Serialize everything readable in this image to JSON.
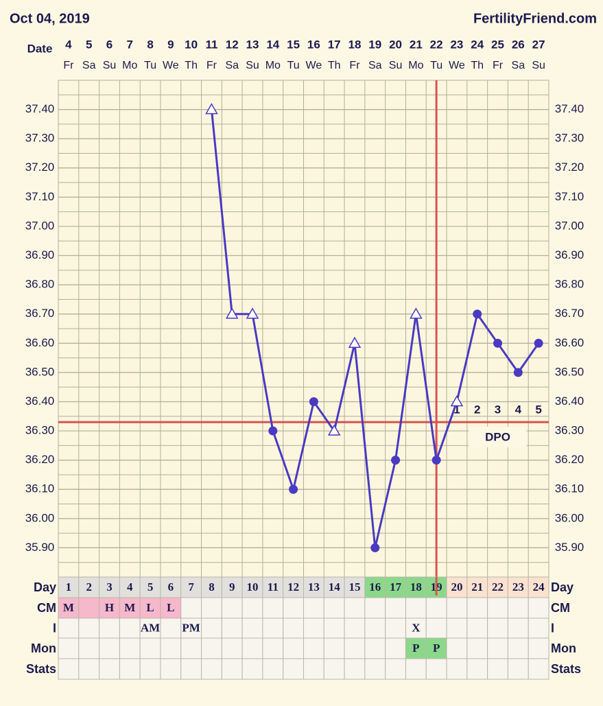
{
  "chart_data": {
    "type": "line",
    "title": "Oct 04, 2019",
    "source": "FertilityFriend.com",
    "x_label": "Date",
    "categories": [
      "4",
      "5",
      "6",
      "7",
      "8",
      "9",
      "10",
      "11",
      "12",
      "13",
      "14",
      "15",
      "16",
      "17",
      "18",
      "19",
      "20",
      "21",
      "22",
      "23",
      "24",
      "25",
      "26",
      "27"
    ],
    "weekdays": [
      "Fr",
      "Sa",
      "Su",
      "Mo",
      "Tu",
      "We",
      "Th",
      "Fr",
      "Sa",
      "Su",
      "Mo",
      "Tu",
      "We",
      "Th",
      "Fr",
      "Sa",
      "Su",
      "Mo",
      "Tu",
      "We",
      "Th",
      "Fr",
      "Sa",
      "Su"
    ],
    "series": [
      {
        "color": "#4a3ac2",
        "values": [
          null,
          null,
          null,
          null,
          null,
          null,
          null,
          37.4,
          36.7,
          36.7,
          36.3,
          36.1,
          36.4,
          36.3,
          36.6,
          35.9,
          36.2,
          36.7,
          36.2,
          36.4,
          36.7,
          36.6,
          36.5,
          36.6
        ],
        "markers": [
          null,
          null,
          null,
          null,
          null,
          null,
          null,
          "triangle",
          "triangle",
          "triangle",
          "circle",
          "circle",
          "circle",
          "triangle",
          "triangle",
          "circle",
          "circle",
          "triangle",
          "circle",
          "triangle",
          "circle",
          "circle",
          "circle",
          "circle"
        ]
      }
    ],
    "ylim": [
      35.8,
      37.5
    ],
    "yticks": [
      {
        "value": 35.9,
        "label": "35.90"
      },
      {
        "value": 36.0,
        "label": "36.00"
      },
      {
        "value": 36.1,
        "label": "36.10"
      },
      {
        "value": 36.2,
        "label": "36.20"
      },
      {
        "value": 36.3,
        "label": "36.30"
      },
      {
        "value": 36.4,
        "label": "36.40"
      },
      {
        "value": 36.5,
        "label": "36.50"
      },
      {
        "value": 36.6,
        "label": "36.60"
      },
      {
        "value": 36.7,
        "label": "36.70"
      },
      {
        "value": 36.8,
        "label": "36.80"
      },
      {
        "value": 36.9,
        "label": "36.90"
      },
      {
        "value": 37.0,
        "label": "37.00"
      },
      {
        "value": 37.1,
        "label": "37.10"
      },
      {
        "value": 37.2,
        "label": "37.20"
      },
      {
        "value": 37.3,
        "label": "37.30"
      },
      {
        "value": 37.4,
        "label": "37.40"
      }
    ],
    "grid": true,
    "coverline": {
      "value": 36.33,
      "color": "#d9534f"
    },
    "ovulation_line": {
      "x": "22",
      "color": "#d9534f"
    },
    "dpo": {
      "label": "DPO",
      "days": [
        "1",
        "2",
        "3",
        "4",
        "5"
      ]
    },
    "table": {
      "rows": [
        {
          "label": "Day",
          "cells": [
            "1",
            "2",
            "3",
            "4",
            "5",
            "6",
            "7",
            "8",
            "9",
            "10",
            "11",
            "12",
            "13",
            "14",
            "15",
            "16",
            "17",
            "18",
            "19",
            "20",
            "21",
            "22",
            "23",
            "24"
          ],
          "colors": [
            "#e2e0dc",
            "#e2e0dc",
            "#e2e0dc",
            "#e2e0dc",
            "#e2e0dc",
            "#e2e0dc",
            "#e2e0dc",
            "#e2e0dc",
            "#e2e0dc",
            "#e2e0dc",
            "#e2e0dc",
            "#e2e0dc",
            "#e2e0dc",
            "#e2e0dc",
            "#e2e0dc",
            "#8cd88a",
            "#8cd88a",
            "#8cd88a",
            "#8cd88a",
            "#fbe2cf",
            "#fbe2cf",
            "#fbe2cf",
            "#fbe2cf",
            "#fbe2cf"
          ]
        },
        {
          "label": "CM",
          "cells": [
            "M",
            null,
            "H",
            "M",
            "L",
            "L",
            null,
            null,
            null,
            null,
            null,
            null,
            null,
            null,
            null,
            null,
            null,
            null,
            null,
            null,
            null,
            null,
            null,
            null
          ],
          "colors": [
            "#f6b8cb",
            "#f6b8cb",
            "#f6b8cb",
            "#f6b8cb",
            "#f6b8cb",
            "#f6b8cb",
            null,
            null,
            null,
            null,
            null,
            null,
            null,
            null,
            null,
            null,
            null,
            null,
            null,
            null,
            null,
            null,
            null,
            null
          ]
        },
        {
          "label": "I",
          "cells": [
            null,
            null,
            null,
            null,
            "AM",
            null,
            "PM",
            null,
            null,
            null,
            null,
            null,
            null,
            null,
            null,
            null,
            null,
            "X",
            null,
            null,
            null,
            null,
            null,
            null
          ],
          "colors": null
        },
        {
          "label": "Mon",
          "cells": [
            null,
            null,
            null,
            null,
            null,
            null,
            null,
            null,
            null,
            null,
            null,
            null,
            null,
            null,
            null,
            null,
            null,
            "P",
            "P",
            null,
            null,
            null,
            null,
            null
          ],
          "colors": [
            null,
            null,
            null,
            null,
            null,
            null,
            null,
            null,
            null,
            null,
            null,
            null,
            null,
            null,
            null,
            null,
            null,
            "#8cd88a",
            "#8cd88a",
            null,
            null,
            null,
            null,
            null
          ]
        },
        {
          "label": "Stats",
          "cells": [
            null,
            null,
            null,
            null,
            null,
            null,
            null,
            null,
            null,
            null,
            null,
            null,
            null,
            null,
            null,
            null,
            null,
            null,
            null,
            null,
            null,
            null,
            null,
            null
          ],
          "colors": null
        }
      ]
    }
  }
}
